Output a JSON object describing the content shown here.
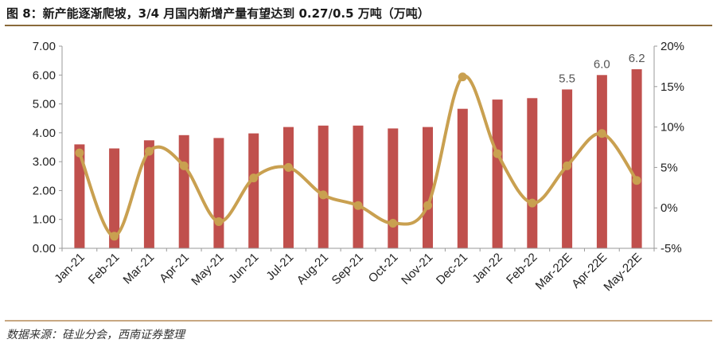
{
  "header": {
    "title": "图 8：新产能逐渐爬坡，3/4 月国内新增产量有望达到 0.27/0.5 万吨（万吨）"
  },
  "footer": {
    "source": "数据来源：硅业分会，西南证券整理"
  },
  "chart_data": {
    "type": "bar+line",
    "categories": [
      "Jan-21",
      "Feb-21",
      "Mar-21",
      "Apr-21",
      "May-21",
      "Jun-21",
      "Jul-21",
      "Aug-21",
      "Sep-21",
      "Oct-21",
      "Nov-21",
      "Dec-21",
      "Jan-22",
      "Feb-22",
      "Mar-22E",
      "Apr-22E",
      "May-22E"
    ],
    "bars": {
      "axis": "left",
      "color": "#c0504d",
      "values": [
        3.6,
        3.46,
        3.74,
        3.92,
        3.82,
        3.98,
        4.2,
        4.25,
        4.25,
        4.15,
        4.2,
        4.83,
        5.15,
        5.2,
        5.5,
        6.0,
        6.2
      ]
    },
    "line": {
      "axis": "right",
      "color": "#c9a050",
      "values": [
        6.8,
        -3.5,
        7.0,
        5.2,
        -1.7,
        3.7,
        5.0,
        1.6,
        0.3,
        -1.9,
        0.3,
        16.2,
        6.7,
        0.6,
        5.2,
        9.2,
        3.4
      ]
    },
    "data_labels": [
      {
        "index": 14,
        "text": "5.5"
      },
      {
        "index": 15,
        "text": "6.0"
      },
      {
        "index": 16,
        "text": "6.2"
      }
    ],
    "left_axis": {
      "min": 0,
      "max": 7,
      "step": 1,
      "tick_labels": [
        "0.00",
        "1.00",
        "2.00",
        "3.00",
        "4.00",
        "5.00",
        "6.00",
        "7.00"
      ]
    },
    "right_axis": {
      "min": -5,
      "max": 20,
      "step": 5,
      "tick_labels": [
        "-5%",
        "0%",
        "5%",
        "10%",
        "15%",
        "20%"
      ]
    },
    "grid": false,
    "legend": "none"
  }
}
